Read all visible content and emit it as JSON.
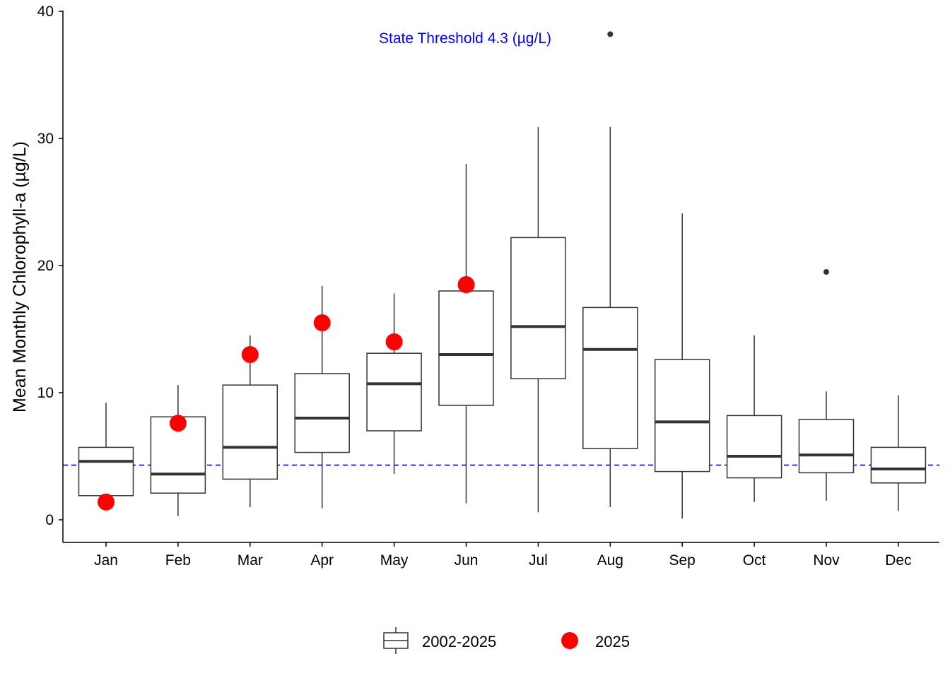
{
  "chart_data": {
    "type": "box",
    "ylabel": "Mean Monthly Chlorophyll-a (µg/L)",
    "xlabel": "",
    "ylim": [
      -1.8,
      40
    ],
    "yticks": [
      0,
      10,
      20,
      30,
      40
    ],
    "categories": [
      "Jan",
      "Feb",
      "Mar",
      "Apr",
      "May",
      "Jun",
      "Jul",
      "Aug",
      "Sep",
      "Oct",
      "Nov",
      "Dec"
    ],
    "grid": false,
    "legend_position": "bottom",
    "series": [
      {
        "name": "2002-2025",
        "kind": "boxplot",
        "color": "#333333",
        "boxes": [
          {
            "min": 1.9,
            "q1": 1.9,
            "median": 4.6,
            "q3": 5.7,
            "max": 9.2,
            "outliers": []
          },
          {
            "min": 0.3,
            "q1": 2.1,
            "median": 3.6,
            "q3": 8.1,
            "max": 10.6,
            "outliers": []
          },
          {
            "min": 1.0,
            "q1": 3.2,
            "median": 5.7,
            "q3": 10.6,
            "max": 14.5,
            "outliers": []
          },
          {
            "min": 0.9,
            "q1": 5.3,
            "median": 8.0,
            "q3": 11.5,
            "max": 18.4,
            "outliers": []
          },
          {
            "min": 3.6,
            "q1": 7.0,
            "median": 10.7,
            "q3": 13.1,
            "max": 17.8,
            "outliers": []
          },
          {
            "min": 1.3,
            "q1": 9.0,
            "median": 13.0,
            "q3": 18.0,
            "max": 28.0,
            "outliers": []
          },
          {
            "min": 0.6,
            "q1": 11.1,
            "median": 15.2,
            "q3": 22.2,
            "max": 30.9,
            "outliers": []
          },
          {
            "min": 1.0,
            "q1": 5.6,
            "median": 13.4,
            "q3": 16.7,
            "max": 30.9,
            "outliers": [
              38.2
            ]
          },
          {
            "min": 0.1,
            "q1": 3.8,
            "median": 7.7,
            "q3": 12.6,
            "max": 24.1,
            "outliers": []
          },
          {
            "min": 1.4,
            "q1": 3.3,
            "median": 5.0,
            "q3": 8.2,
            "max": 14.5,
            "outliers": []
          },
          {
            "min": 1.5,
            "q1": 3.7,
            "median": 5.1,
            "q3": 7.9,
            "max": 10.1,
            "outliers": [
              19.5
            ]
          },
          {
            "min": 0.7,
            "q1": 2.9,
            "median": 4.0,
            "q3": 5.7,
            "max": 9.8,
            "outliers": []
          }
        ]
      },
      {
        "name": "2025",
        "kind": "points",
        "color": "#ff0000",
        "values": [
          1.4,
          7.6,
          13.0,
          15.5,
          14.0,
          18.5,
          null,
          null,
          null,
          null,
          null,
          null
        ]
      }
    ],
    "reference_line": {
      "value": 4.3,
      "label": "State Threshold 4.3 (µg/L)",
      "color": "#0000ff",
      "style": "dashed"
    }
  }
}
